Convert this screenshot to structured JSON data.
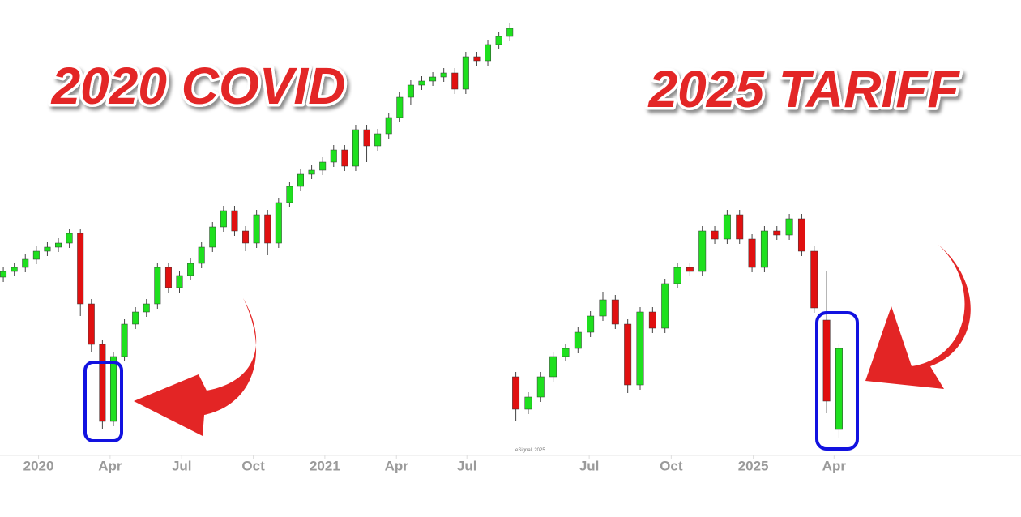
{
  "chart_data": [
    {
      "type": "candlestick",
      "title": "2020 COVID",
      "up_color": "#1ee01e",
      "down_color": "#e01010",
      "open": [
        258,
        265,
        270,
        280,
        290,
        295,
        300,
        312,
        225,
        175,
        80,
        160,
        200,
        215,
        225,
        270,
        245,
        260,
        275,
        295,
        320,
        340,
        315,
        300,
        335,
        300,
        350,
        370,
        385,
        390,
        400,
        415,
        395,
        440,
        420,
        435,
        455,
        480,
        495,
        500,
        505,
        510,
        490,
        530,
        525,
        545,
        555
      ],
      "high": [
        271,
        276,
        286,
        296,
        301,
        306,
        318,
        318,
        231,
        181,
        166,
        206,
        221,
        231,
        276,
        276,
        266,
        281,
        301,
        326,
        346,
        346,
        321,
        341,
        341,
        356,
        376,
        391,
        396,
        406,
        421,
        421,
        446,
        446,
        441,
        461,
        486,
        501,
        506,
        511,
        516,
        516,
        536,
        536,
        551,
        561,
        571
      ],
      "low": [
        252,
        259,
        264,
        274,
        284,
        289,
        294,
        210,
        165,
        70,
        74,
        154,
        194,
        209,
        219,
        239,
        239,
        254,
        269,
        289,
        314,
        309,
        290,
        294,
        285,
        294,
        344,
        364,
        379,
        384,
        394,
        389,
        389,
        400,
        414,
        429,
        449,
        470,
        489,
        494,
        499,
        484,
        484,
        519,
        519,
        539,
        549
      ],
      "close": [
        265,
        270,
        280,
        290,
        295,
        300,
        312,
        225,
        175,
        80,
        160,
        200,
        215,
        225,
        270,
        245,
        260,
        275,
        295,
        320,
        340,
        315,
        300,
        335,
        300,
        350,
        370,
        385,
        390,
        400,
        415,
        395,
        440,
        420,
        435,
        455,
        480,
        495,
        500,
        505,
        510,
        490,
        530,
        525,
        545,
        555,
        565
      ],
      "xlim": [
        -0.3,
        46.5
      ],
      "ylim": [
        40,
        600
      ],
      "xticks": [
        {
          "value": 3.2,
          "label": "2020"
        },
        {
          "value": 9.7,
          "label": "Apr"
        },
        {
          "value": 16.2,
          "label": "Jul"
        },
        {
          "value": 22.7,
          "label": "Oct"
        },
        {
          "value": 29.2,
          "label": "2021"
        },
        {
          "value": 35.7,
          "label": "Apr"
        },
        {
          "value": 42.1,
          "label": "Jul"
        }
      ]
    },
    {
      "type": "candlestick",
      "title": "2025 TARIFF",
      "up_color": "#1ee01e",
      "down_color": "#e01010",
      "watermark": "eSignal, 2025",
      "open": [
        135,
        95,
        110,
        135,
        160,
        170,
        190,
        210,
        230,
        200,
        125,
        215,
        195,
        250,
        270,
        265,
        315,
        305,
        335,
        305,
        270,
        315,
        310,
        330,
        290,
        205,
        70
      ],
      "high": [
        141,
        116,
        141,
        166,
        176,
        196,
        216,
        240,
        236,
        206,
        221,
        221,
        256,
        276,
        276,
        321,
        321,
        341,
        341,
        311,
        321,
        321,
        336,
        336,
        296,
        265,
        176
      ],
      "low": [
        80,
        89,
        104,
        129,
        154,
        164,
        184,
        204,
        194,
        115,
        119,
        189,
        189,
        244,
        259,
        259,
        299,
        299,
        299,
        264,
        264,
        304,
        304,
        284,
        214,
        90,
        60
      ],
      "close": [
        95,
        110,
        135,
        160,
        170,
        190,
        210,
        230,
        200,
        125,
        215,
        195,
        250,
        270,
        265,
        315,
        305,
        335,
        305,
        270,
        315,
        310,
        330,
        290,
        220,
        105,
        170
      ],
      "xlim": [
        -0.3,
        27.6
      ],
      "ylim": [
        40,
        600
      ],
      "xticks": [
        {
          "value": 5.9,
          "label": "Jul"
        },
        {
          "value": 12.5,
          "label": "Oct"
        },
        {
          "value": 19.1,
          "label": "2025"
        },
        {
          "value": 25.6,
          "label": "Apr"
        }
      ]
    }
  ]
}
